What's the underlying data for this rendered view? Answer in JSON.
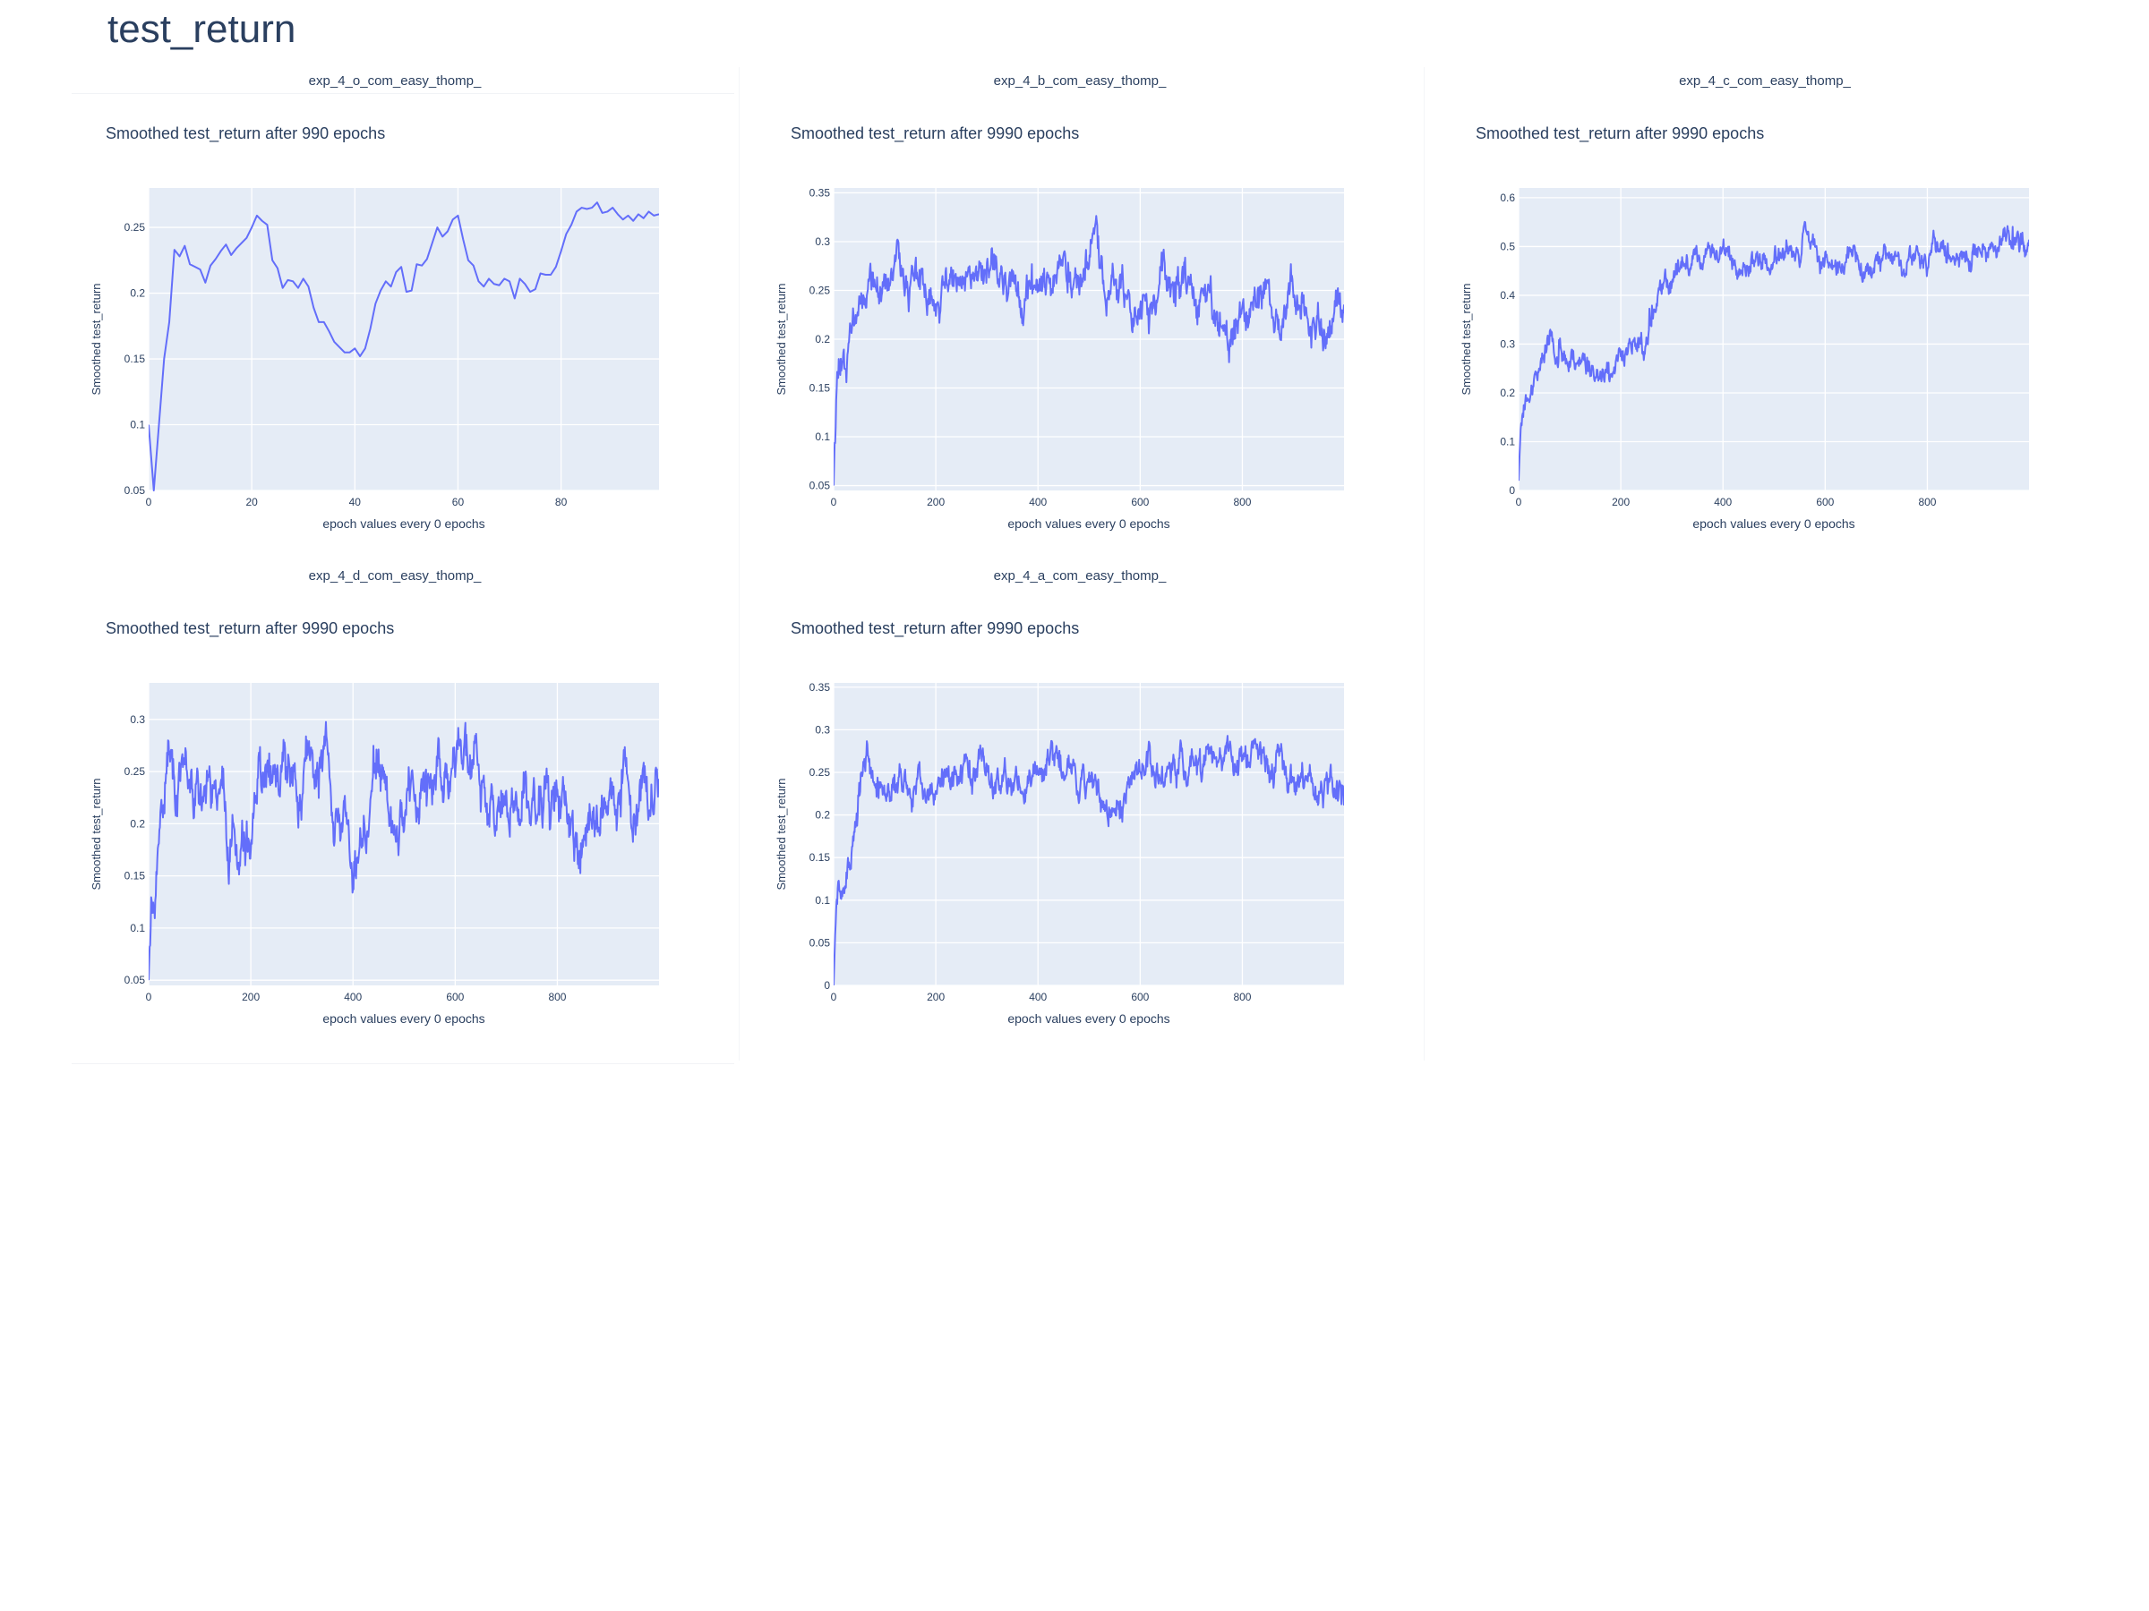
{
  "page": {
    "title": "test_return"
  },
  "chart_data": [
    {
      "type": "line",
      "panel_title": "exp_4_o_com_easy_thomp_",
      "title": "Smoothed test_return after 990 epochs",
      "xlabel": "epoch values every 0 epochs",
      "ylabel": "Smoothed test_return",
      "xlim": [
        0,
        99
      ],
      "ylim": [
        0.05,
        0.28
      ],
      "xticks": [
        0,
        20,
        40,
        60,
        80
      ],
      "yticks": [
        0.05,
        0.1,
        0.15,
        0.2,
        0.25
      ],
      "ytick_labels": [
        "0.05",
        "0.1",
        "0.15",
        "0.2",
        "0.25"
      ],
      "color": "#636efa",
      "grid": true,
      "series": [
        {
          "kind": "explicit",
          "x": [
            0,
            1,
            3,
            4,
            5,
            6,
            7,
            8,
            9,
            10,
            11,
            12,
            13,
            14,
            15,
            16,
            17,
            18,
            19,
            20,
            21,
            22,
            23,
            24,
            25,
            26,
            27,
            28,
            29,
            30,
            31,
            32,
            33,
            34,
            35,
            36,
            37,
            38,
            39,
            40,
            41,
            42,
            43,
            44,
            45,
            46,
            47,
            48,
            49,
            50,
            51,
            52,
            53,
            54,
            55,
            56,
            57,
            58,
            59,
            60,
            61,
            62,
            63,
            64,
            65,
            66,
            67,
            68,
            69,
            70,
            71,
            72,
            73,
            74,
            75,
            76,
            77,
            78,
            79,
            80,
            81,
            82,
            83,
            84,
            85,
            86,
            87,
            88,
            89,
            90,
            91,
            92,
            93,
            94,
            95,
            96,
            97,
            98,
            99
          ],
          "y": [
            0.1,
            0.05,
            0.15,
            0.178,
            0.233,
            0.228,
            0.236,
            0.222,
            0.22,
            0.218,
            0.208,
            0.221,
            0.226,
            0.232,
            0.237,
            0.229,
            0.234,
            0.238,
            0.242,
            0.25,
            0.259,
            0.255,
            0.252,
            0.225,
            0.219,
            0.204,
            0.21,
            0.209,
            0.204,
            0.211,
            0.205,
            0.189,
            0.178,
            0.178,
            0.171,
            0.163,
            0.159,
            0.155,
            0.155,
            0.158,
            0.152,
            0.158,
            0.173,
            0.192,
            0.202,
            0.209,
            0.205,
            0.216,
            0.22,
            0.201,
            0.202,
            0.222,
            0.221,
            0.226,
            0.238,
            0.25,
            0.243,
            0.247,
            0.256,
            0.259,
            0.241,
            0.225,
            0.221,
            0.209,
            0.205,
            0.211,
            0.207,
            0.206,
            0.211,
            0.209,
            0.196,
            0.211,
            0.207,
            0.201,
            0.203,
            0.215,
            0.214,
            0.214,
            0.22,
            0.232,
            0.245,
            0.252,
            0.262,
            0.265,
            0.264,
            0.265,
            0.269,
            0.261,
            0.262,
            0.265,
            0.26,
            0.256,
            0.259,
            0.255,
            0.26,
            0.257,
            0.262,
            0.259,
            0.26
          ]
        }
      ]
    },
    {
      "type": "line",
      "panel_title": "exp_4_b_com_easy_thomp_",
      "title": "Smoothed test_return after 9990 epochs",
      "xlabel": "epoch values every 0 epochs",
      "ylabel": "Smoothed test_return",
      "xlim": [
        0,
        999
      ],
      "ylim": [
        0.045,
        0.355
      ],
      "xticks": [
        0,
        200,
        400,
        600,
        800
      ],
      "yticks": [
        0.05,
        0.1,
        0.15,
        0.2,
        0.25,
        0.3,
        0.35
      ],
      "ytick_labels": [
        "0.05",
        "0.1",
        "0.15",
        "0.2",
        "0.25",
        "0.3",
        "0.35"
      ],
      "color": "#636efa",
      "grid": true,
      "series": [
        {
          "kind": "noisy",
          "n": 1000,
          "anchors": [
            [
              0,
              0.05
            ],
            [
              5,
              0.16
            ],
            [
              12,
              0.2
            ],
            [
              25,
              0.19
            ],
            [
              40,
              0.24
            ],
            [
              70,
              0.28
            ],
            [
              90,
              0.25
            ],
            [
              130,
              0.26
            ],
            [
              170,
              0.25
            ],
            [
              200,
              0.24
            ],
            [
              230,
              0.25
            ],
            [
              270,
              0.26
            ],
            [
              300,
              0.29
            ],
            [
              340,
              0.24
            ],
            [
              380,
              0.25
            ],
            [
              430,
              0.27
            ],
            [
              470,
              0.26
            ],
            [
              510,
              0.29
            ],
            [
              540,
              0.26
            ],
            [
              600,
              0.24
            ],
            [
              650,
              0.25
            ],
            [
              700,
              0.25
            ],
            [
              730,
              0.23
            ],
            [
              780,
              0.2
            ],
            [
              820,
              0.25
            ],
            [
              860,
              0.22
            ],
            [
              900,
              0.25
            ],
            [
              940,
              0.22
            ],
            [
              999,
              0.21
            ]
          ],
          "amp": 0.022,
          "spike": 0.035,
          "seed": 11
        }
      ]
    },
    {
      "type": "line",
      "panel_title": "exp_4_c_com_easy_thomp_",
      "title": "Smoothed test_return after 9990 epochs",
      "xlabel": "epoch values every 0 epochs",
      "ylabel": "Smoothed test_return",
      "xlim": [
        0,
        999
      ],
      "ylim": [
        0,
        0.62
      ],
      "xticks": [
        0,
        200,
        400,
        600,
        800
      ],
      "yticks": [
        0,
        0.1,
        0.2,
        0.3,
        0.4,
        0.5,
        0.6
      ],
      "ytick_labels": [
        "0",
        "0.1",
        "0.2",
        "0.3",
        "0.4",
        "0.5",
        "0.6"
      ],
      "color": "#636efa",
      "grid": true,
      "series": [
        {
          "kind": "noisy",
          "n": 1000,
          "anchors": [
            [
              0,
              0.02
            ],
            [
              5,
              0.16
            ],
            [
              15,
              0.2
            ],
            [
              30,
              0.22
            ],
            [
              60,
              0.3
            ],
            [
              90,
              0.27
            ],
            [
              150,
              0.25
            ],
            [
              190,
              0.26
            ],
            [
              230,
              0.3
            ],
            [
              260,
              0.32
            ],
            [
              290,
              0.4
            ],
            [
              320,
              0.48
            ],
            [
              360,
              0.47
            ],
            [
              395,
              0.5
            ],
            [
              430,
              0.47
            ],
            [
              480,
              0.48
            ],
            [
              520,
              0.47
            ],
            [
              560,
              0.5
            ],
            [
              600,
              0.47
            ],
            [
              640,
              0.46
            ],
            [
              700,
              0.5
            ],
            [
              760,
              0.47
            ],
            [
              800,
              0.47
            ],
            [
              850,
              0.49
            ],
            [
              900,
              0.5
            ],
            [
              950,
              0.51
            ],
            [
              999,
              0.51
            ]
          ],
          "amp": 0.028,
          "spike": 0.05,
          "seed": 23
        }
      ]
    },
    {
      "type": "line",
      "panel_title": "exp_4_d_com_easy_thomp_",
      "title": "Smoothed test_return after 9990 epochs",
      "xlabel": "epoch values every 0 epochs",
      "ylabel": "Smoothed test_return",
      "xlim": [
        0,
        999
      ],
      "ylim": [
        0.045,
        0.335
      ],
      "xticks": [
        0,
        200,
        400,
        600,
        800
      ],
      "yticks": [
        0.05,
        0.1,
        0.15,
        0.2,
        0.25,
        0.3
      ],
      "ytick_labels": [
        "0.05",
        "0.1",
        "0.15",
        "0.2",
        "0.25",
        "0.3"
      ],
      "color": "#636efa",
      "grid": true,
      "series": [
        {
          "kind": "noisy",
          "n": 1000,
          "anchors": [
            [
              0,
              0.05
            ],
            [
              5,
              0.13
            ],
            [
              12,
              0.11
            ],
            [
              25,
              0.2
            ],
            [
              40,
              0.25
            ],
            [
              80,
              0.24
            ],
            [
              120,
              0.22
            ],
            [
              160,
              0.19
            ],
            [
              200,
              0.21
            ],
            [
              250,
              0.24
            ],
            [
              300,
              0.21
            ],
            [
              350,
              0.25
            ],
            [
              390,
              0.17
            ],
            [
              410,
              0.16
            ],
            [
              450,
              0.24
            ],
            [
              500,
              0.25
            ],
            [
              560,
              0.23
            ],
            [
              620,
              0.27
            ],
            [
              680,
              0.22
            ],
            [
              740,
              0.25
            ],
            [
              800,
              0.2
            ],
            [
              850,
              0.18
            ],
            [
              900,
              0.23
            ],
            [
              950,
              0.25
            ],
            [
              999,
              0.24
            ]
          ],
          "amp": 0.03,
          "spike": 0.04,
          "seed": 37
        }
      ]
    },
    {
      "type": "line",
      "panel_title": "exp_4_a_com_easy_thomp_",
      "title": "Smoothed test_return after 9990 epochs",
      "xlabel": "epoch values every 0 epochs",
      "ylabel": "Smoothed test_return",
      "xlim": [
        0,
        999
      ],
      "ylim": [
        0,
        0.355
      ],
      "xticks": [
        0,
        200,
        400,
        600,
        800
      ],
      "yticks": [
        0,
        0.05,
        0.1,
        0.15,
        0.2,
        0.25,
        0.3,
        0.35
      ],
      "ytick_labels": [
        "0",
        "0.05",
        "0.1",
        "0.15",
        "0.2",
        "0.25",
        "0.3",
        "0.35"
      ],
      "color": "#636efa",
      "grid": true,
      "series": [
        {
          "kind": "noisy",
          "n": 1000,
          "anchors": [
            [
              0,
              0.0
            ],
            [
              5,
              0.1
            ],
            [
              20,
              0.15
            ],
            [
              40,
              0.18
            ],
            [
              70,
              0.26
            ],
            [
              110,
              0.23
            ],
            [
              150,
              0.24
            ],
            [
              200,
              0.22
            ],
            [
              260,
              0.25
            ],
            [
              320,
              0.24
            ],
            [
              380,
              0.23
            ],
            [
              440,
              0.27
            ],
            [
              500,
              0.23
            ],
            [
              560,
              0.22
            ],
            [
              620,
              0.24
            ],
            [
              680,
              0.27
            ],
            [
              720,
              0.26
            ],
            [
              780,
              0.27
            ],
            [
              820,
              0.29
            ],
            [
              860,
              0.26
            ],
            [
              900,
              0.23
            ],
            [
              950,
              0.24
            ],
            [
              999,
              0.22
            ]
          ],
          "amp": 0.022,
          "spike": 0.03,
          "seed": 51
        }
      ]
    }
  ]
}
